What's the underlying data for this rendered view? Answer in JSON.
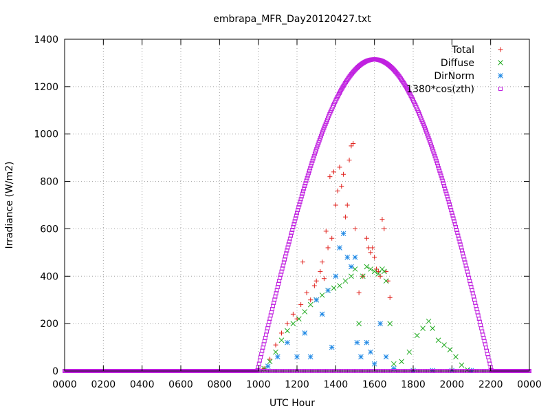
{
  "chart_data": {
    "type": "scatter",
    "title": "embrapa_MFR_Day20120427.txt",
    "xlabel": "UTC Hour",
    "ylabel": "Irradiance (W/m2)",
    "xlim": [
      0,
      24
    ],
    "ylim": [
      0,
      1400
    ],
    "x_ticks": [
      {
        "value": 0,
        "label": "0000"
      },
      {
        "value": 2,
        "label": "0200"
      },
      {
        "value": 4,
        "label": "0400"
      },
      {
        "value": 6,
        "label": "0600"
      },
      {
        "value": 8,
        "label": "0800"
      },
      {
        "value": 10,
        "label": "1000"
      },
      {
        "value": 12,
        "label": "1200"
      },
      {
        "value": 14,
        "label": "1400"
      },
      {
        "value": 16,
        "label": "1600"
      },
      {
        "value": 18,
        "label": "1800"
      },
      {
        "value": 20,
        "label": "2000"
      },
      {
        "value": 22,
        "label": "2200"
      },
      {
        "value": 24,
        "label": "0000"
      }
    ],
    "y_ticks": [
      0,
      200,
      400,
      600,
      800,
      1000,
      1200,
      1400
    ],
    "grid": true,
    "legend_position": "top-right",
    "series": [
      {
        "name": "Total",
        "marker": "+",
        "color": "#e0201b",
        "points": [
          [
            10.3,
            10
          ],
          [
            10.6,
            50
          ],
          [
            10.9,
            110
          ],
          [
            11.2,
            160
          ],
          [
            11.5,
            200
          ],
          [
            11.8,
            240
          ],
          [
            12.0,
            220
          ],
          [
            12.2,
            280
          ],
          [
            12.3,
            460
          ],
          [
            12.5,
            330
          ],
          [
            12.7,
            300
          ],
          [
            12.9,
            360
          ],
          [
            13.0,
            380
          ],
          [
            13.2,
            420
          ],
          [
            13.3,
            460
          ],
          [
            13.4,
            390
          ],
          [
            13.5,
            590
          ],
          [
            13.6,
            520
          ],
          [
            13.7,
            820
          ],
          [
            13.8,
            560
          ],
          [
            13.9,
            840
          ],
          [
            14.0,
            700
          ],
          [
            14.1,
            760
          ],
          [
            14.2,
            860
          ],
          [
            14.3,
            780
          ],
          [
            14.4,
            830
          ],
          [
            14.5,
            650
          ],
          [
            14.6,
            700
          ],
          [
            14.7,
            890
          ],
          [
            14.8,
            950
          ],
          [
            14.9,
            960
          ],
          [
            15.0,
            600
          ],
          [
            15.2,
            330
          ],
          [
            15.4,
            400
          ],
          [
            15.6,
            560
          ],
          [
            15.7,
            520
          ],
          [
            15.8,
            500
          ],
          [
            15.9,
            520
          ],
          [
            16.0,
            480
          ],
          [
            16.1,
            430
          ],
          [
            16.2,
            420
          ],
          [
            16.3,
            400
          ],
          [
            16.4,
            640
          ],
          [
            16.5,
            600
          ],
          [
            16.6,
            420
          ],
          [
            16.7,
            380
          ],
          [
            16.8,
            310
          ]
        ]
      },
      {
        "name": "Diffuse",
        "marker": "x",
        "color": "#1faa1f",
        "points": [
          [
            10.3,
            10
          ],
          [
            10.6,
            40
          ],
          [
            10.9,
            80
          ],
          [
            11.2,
            130
          ],
          [
            11.5,
            170
          ],
          [
            11.8,
            200
          ],
          [
            12.1,
            220
          ],
          [
            12.4,
            250
          ],
          [
            12.7,
            280
          ],
          [
            13.0,
            300
          ],
          [
            13.3,
            320
          ],
          [
            13.6,
            340
          ],
          [
            13.9,
            350
          ],
          [
            14.2,
            360
          ],
          [
            14.5,
            380
          ],
          [
            14.8,
            400
          ],
          [
            15.0,
            430
          ],
          [
            15.2,
            200
          ],
          [
            15.4,
            400
          ],
          [
            15.6,
            440
          ],
          [
            15.8,
            430
          ],
          [
            16.0,
            420
          ],
          [
            16.2,
            410
          ],
          [
            16.4,
            430
          ],
          [
            16.5,
            420
          ],
          [
            16.6,
            380
          ],
          [
            16.8,
            200
          ],
          [
            17.0,
            30
          ],
          [
            17.4,
            40
          ],
          [
            17.8,
            80
          ],
          [
            18.2,
            150
          ],
          [
            18.5,
            180
          ],
          [
            18.8,
            210
          ],
          [
            19.0,
            180
          ],
          [
            19.3,
            130
          ],
          [
            19.6,
            110
          ],
          [
            19.9,
            90
          ],
          [
            20.2,
            60
          ],
          [
            20.5,
            25
          ],
          [
            20.8,
            5
          ]
        ]
      },
      {
        "name": "DirNorm",
        "marker": "*",
        "color": "#1e88e5",
        "points": [
          [
            10.5,
            20
          ],
          [
            11.0,
            60
          ],
          [
            11.5,
            120
          ],
          [
            12.0,
            60
          ],
          [
            12.4,
            160
          ],
          [
            12.7,
            60
          ],
          [
            13.0,
            300
          ],
          [
            13.3,
            240
          ],
          [
            13.6,
            340
          ],
          [
            13.8,
            100
          ],
          [
            14.0,
            400
          ],
          [
            14.2,
            520
          ],
          [
            14.4,
            580
          ],
          [
            14.6,
            480
          ],
          [
            14.8,
            440
          ],
          [
            15.0,
            480
          ],
          [
            15.1,
            120
          ],
          [
            15.3,
            60
          ],
          [
            15.6,
            120
          ],
          [
            15.8,
            80
          ],
          [
            16.0,
            30
          ],
          [
            16.3,
            200
          ],
          [
            16.6,
            60
          ],
          [
            17.0,
            10
          ],
          [
            18.0,
            2
          ],
          [
            19.0,
            2
          ],
          [
            20.0,
            2
          ],
          [
            21.0,
            2
          ]
        ]
      },
      {
        "name": "1380*cos(zth)",
        "marker": "square",
        "color": "#c020e0",
        "amplitude": 1315,
        "rise_hour": 9.95,
        "set_hour": 22.05
      }
    ]
  }
}
